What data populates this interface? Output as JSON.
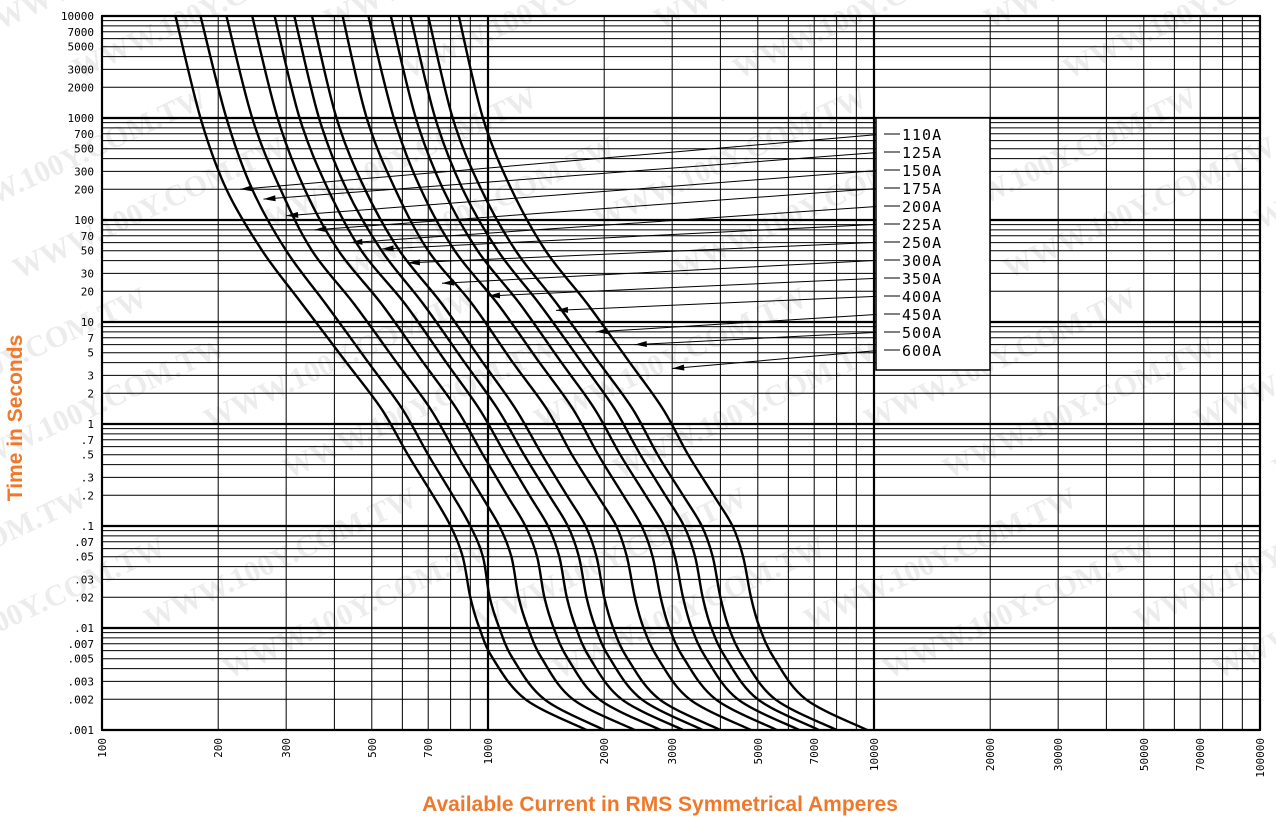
{
  "chart_data": {
    "type": "line",
    "title": "",
    "xlabel": "Available Current in RMS Symmetrical Amperes",
    "ylabel": "Time in Seconds",
    "x_scale": "log",
    "y_scale": "log",
    "xlim": [
      100,
      100000
    ],
    "ylim": [
      0.001,
      10000
    ],
    "grid": true,
    "legend": "right-center",
    "x_tick_labels": [
      "100",
      "200",
      "300",
      "500",
      "700",
      "1000",
      "2000",
      "3000",
      "5000",
      "7000",
      "10000",
      "20000",
      "30000",
      "50000",
      "70000",
      "100000"
    ],
    "x_tick_values": [
      100,
      200,
      300,
      500,
      700,
      1000,
      2000,
      3000,
      5000,
      7000,
      10000,
      20000,
      30000,
      50000,
      70000,
      100000
    ],
    "y_tick_labels": [
      "10000",
      "7000",
      "5000",
      "3000",
      "2000",
      "1000",
      "700",
      "500",
      "300",
      "200",
      "100",
      "70",
      "50",
      "30",
      "20",
      "10",
      "7",
      "5",
      "3",
      "2",
      "1",
      ".7",
      ".5",
      ".3",
      ".2",
      ".1",
      ".07",
      ".05",
      ".03",
      ".02",
      ".01",
      ".007",
      ".005",
      ".003",
      ".002",
      ".001"
    ],
    "y_tick_values": [
      10000,
      7000,
      5000,
      3000,
      2000,
      1000,
      700,
      500,
      300,
      200,
      100,
      70,
      50,
      30,
      20,
      10,
      7,
      5,
      3,
      2,
      1,
      0.7,
      0.5,
      0.3,
      0.2,
      0.1,
      0.07,
      0.05,
      0.03,
      0.02,
      0.01,
      0.007,
      0.005,
      0.003,
      0.002,
      0.001
    ],
    "watermark": "WWW.100Y.COM.TW",
    "series": [
      {
        "name": "110A",
        "x": [
          155,
          180,
          210,
          260,
          330,
          430,
          530,
          620,
          720,
          800,
          860,
          900,
          950,
          1030,
          1250,
          1800
        ],
        "y": [
          10000,
          1000,
          200,
          50,
          15,
          4,
          1.4,
          0.5,
          0.2,
          0.1,
          0.05,
          0.02,
          0.01,
          0.005,
          0.002,
          0.001
        ],
        "arrow": [
          228,
          200
        ]
      },
      {
        "name": "125A",
        "x": [
          180,
          210,
          245,
          300,
          380,
          490,
          600,
          700,
          810,
          900,
          970,
          1010,
          1070,
          1160,
          1400,
          2000
        ],
        "y": [
          10000,
          1000,
          200,
          50,
          15,
          4,
          1.4,
          0.5,
          0.2,
          0.1,
          0.05,
          0.02,
          0.01,
          0.005,
          0.002,
          0.001
        ],
        "arrow": [
          262,
          160
        ]
      },
      {
        "name": "150A",
        "x": [
          210,
          245,
          290,
          350,
          450,
          580,
          710,
          830,
          960,
          1070,
          1150,
          1200,
          1270,
          1380,
          1660,
          2400
        ],
        "y": [
          10000,
          1000,
          200,
          50,
          15,
          4,
          1.4,
          0.5,
          0.2,
          0.1,
          0.05,
          0.02,
          0.01,
          0.005,
          0.002,
          0.001
        ],
        "arrow": [
          300,
          110
        ]
      },
      {
        "name": "175A",
        "x": [
          245,
          285,
          335,
          410,
          530,
          680,
          830,
          970,
          1120,
          1250,
          1340,
          1400,
          1480,
          1610,
          1940,
          2800
        ],
        "y": [
          10000,
          1000,
          200,
          50,
          15,
          4,
          1.4,
          0.5,
          0.2,
          0.1,
          0.05,
          0.02,
          0.01,
          0.005,
          0.002,
          0.001
        ],
        "arrow": [
          355,
          80
        ]
      },
      {
        "name": "200A",
        "x": [
          280,
          325,
          385,
          470,
          610,
          780,
          950,
          1110,
          1280,
          1430,
          1530,
          1600,
          1690,
          1840,
          2220,
          3200
        ],
        "y": [
          10000,
          1000,
          200,
          50,
          15,
          4,
          1.4,
          0.5,
          0.2,
          0.1,
          0.05,
          0.02,
          0.01,
          0.005,
          0.002,
          0.001
        ],
        "arrow": [
          440,
          60
        ]
      },
      {
        "name": "225A",
        "x": [
          315,
          365,
          430,
          530,
          680,
          870,
          1060,
          1240,
          1440,
          1610,
          1720,
          1800,
          1900,
          2070,
          2500,
          3600
        ],
        "y": [
          10000,
          1000,
          200,
          50,
          15,
          4,
          1.4,
          0.5,
          0.2,
          0.1,
          0.05,
          0.02,
          0.01,
          0.005,
          0.002,
          0.001
        ],
        "arrow": [
          530,
          52
        ]
      },
      {
        "name": "250A",
        "x": [
          350,
          405,
          480,
          590,
          760,
          970,
          1180,
          1380,
          1600,
          1790,
          1910,
          2000,
          2110,
          2300,
          2780,
          4000
        ],
        "y": [
          10000,
          1000,
          200,
          50,
          15,
          4,
          1.4,
          0.5,
          0.2,
          0.1,
          0.05,
          0.02,
          0.01,
          0.005,
          0.002,
          0.001
        ],
        "arrow": [
          620,
          38
        ]
      },
      {
        "name": "300A",
        "x": [
          420,
          485,
          575,
          700,
          910,
          1160,
          1420,
          1650,
          1920,
          2150,
          2290,
          2400,
          2530,
          2760,
          3330,
          4800
        ],
        "y": [
          10000,
          1000,
          200,
          50,
          15,
          4,
          1.4,
          0.5,
          0.2,
          0.1,
          0.05,
          0.02,
          0.01,
          0.005,
          0.002,
          0.001
        ],
        "arrow": [
          760,
          24
        ]
      },
      {
        "name": "350A",
        "x": [
          490,
          570,
          670,
          820,
          1060,
          1360,
          1660,
          1930,
          2240,
          2500,
          2670,
          2800,
          2950,
          3220,
          3890,
          5600
        ],
        "y": [
          10000,
          1000,
          200,
          50,
          15,
          4,
          1.4,
          0.5,
          0.2,
          0.1,
          0.05,
          0.02,
          0.01,
          0.005,
          0.002,
          0.001
        ],
        "arrow": [
          1000,
          18
        ]
      },
      {
        "name": "400A",
        "x": [
          560,
          650,
          765,
          940,
          1210,
          1550,
          1890,
          2200,
          2560,
          2860,
          3050,
          3200,
          3370,
          3680,
          4440,
          6400
        ],
        "y": [
          10000,
          1000,
          200,
          50,
          15,
          4,
          1.4,
          0.5,
          0.2,
          0.1,
          0.05,
          0.02,
          0.01,
          0.005,
          0.002,
          0.001
        ],
        "arrow": [
          1500,
          13
        ]
      },
      {
        "name": "450A",
        "x": [
          630,
          730,
          860,
          1060,
          1360,
          1750,
          2130,
          2480,
          2880,
          3220,
          3440,
          3600,
          3790,
          4140,
          5000,
          7200
        ],
        "y": [
          10000,
          1000,
          200,
          50,
          15,
          4,
          1.4,
          0.5,
          0.2,
          0.1,
          0.05,
          0.02,
          0.01,
          0.005,
          0.002,
          0.001
        ],
        "arrow": [
          1900,
          8
        ]
      },
      {
        "name": "500A",
        "x": [
          700,
          810,
          960,
          1180,
          1510,
          1940,
          2370,
          2750,
          3200,
          3580,
          3820,
          4000,
          4210,
          4600,
          5550,
          8000
        ],
        "y": [
          10000,
          1000,
          200,
          50,
          15,
          4,
          1.4,
          0.5,
          0.2,
          0.1,
          0.05,
          0.02,
          0.01,
          0.005,
          0.002,
          0.001
        ],
        "arrow": [
          2400,
          6
        ]
      },
      {
        "name": "600A",
        "x": [
          840,
          970,
          1150,
          1410,
          1810,
          2330,
          2840,
          3300,
          3840,
          4300,
          4580,
          4800,
          5060,
          5520,
          6660,
          9600
        ],
        "y": [
          10000,
          1000,
          200,
          50,
          15,
          4,
          1.4,
          0.5,
          0.2,
          0.1,
          0.05,
          0.02,
          0.01,
          0.005,
          0.002,
          0.001
        ],
        "arrow": [
          3000,
          3.5
        ]
      }
    ]
  }
}
